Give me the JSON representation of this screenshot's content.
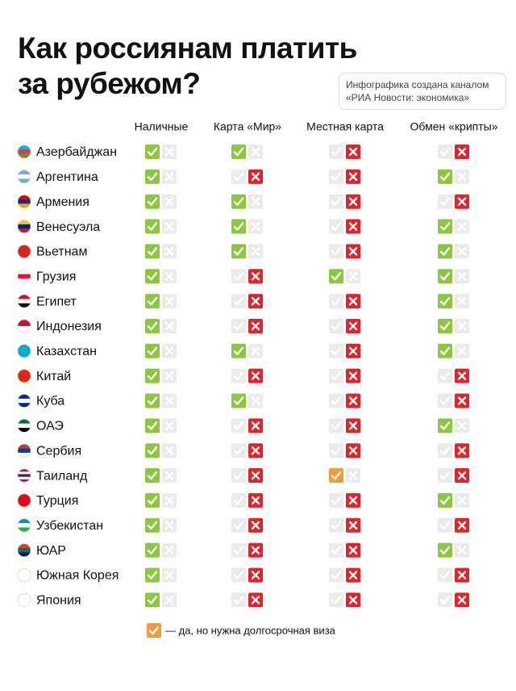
{
  "header": {
    "title_lines": [
      "Как россиянам платить",
      "за рубежом?"
    ],
    "note_lines": [
      "Инфографика создана каналом",
      "«РИА Новости: экономика»"
    ]
  },
  "table": {
    "columns": [
      "Наличные",
      "Карта «Мир»",
      "Местная карта",
      "Обмен «крипты»"
    ],
    "rows": [
      {
        "country": "Азербайджан",
        "flag": [
          "#00b5e2",
          "#ef3340",
          "#509e2f"
        ],
        "status": [
          "yes",
          "yes",
          "no",
          "no"
        ]
      },
      {
        "country": "Аргентина",
        "flag": [
          "#74acdf",
          "#ffffff",
          "#74acdf"
        ],
        "status": [
          "yes",
          "no",
          "no",
          "yes"
        ]
      },
      {
        "country": "Армения",
        "flag": [
          "#d90012",
          "#0033a0",
          "#f2a800"
        ],
        "status": [
          "yes",
          "yes",
          "no",
          "no"
        ]
      },
      {
        "country": "Венесуэла",
        "flag": [
          "#ffcc00",
          "#00247d",
          "#cf142b"
        ],
        "status": [
          "yes",
          "yes",
          "no",
          "yes"
        ]
      },
      {
        "country": "Вьетнам",
        "flag": [
          "#da251d"
        ],
        "status": [
          "yes",
          "yes",
          "no",
          "yes"
        ]
      },
      {
        "country": "Грузия",
        "flag": [
          "#ffffff",
          "#e8112d",
          "#ffffff"
        ],
        "status": [
          "yes",
          "no",
          "yes",
          "yes"
        ]
      },
      {
        "country": "Египет",
        "flag": [
          "#ce1126",
          "#ffffff",
          "#000000"
        ],
        "status": [
          "yes",
          "no",
          "no",
          "yes"
        ]
      },
      {
        "country": "Индонезия",
        "flag": [
          "#ce1126",
          "#ffffff"
        ],
        "status": [
          "yes",
          "no",
          "no",
          "yes"
        ]
      },
      {
        "country": "Казахстан",
        "flag": [
          "#00afca"
        ],
        "status": [
          "yes",
          "yes",
          "no",
          "yes"
        ]
      },
      {
        "country": "Китай",
        "flag": [
          "#de2910"
        ],
        "status": [
          "yes",
          "no",
          "no",
          "no"
        ]
      },
      {
        "country": "Куба",
        "flag": [
          "#002a8f",
          "#ffffff",
          "#002a8f"
        ],
        "status": [
          "yes",
          "yes",
          "no",
          "no"
        ]
      },
      {
        "country": "ОАЭ",
        "flag": [
          "#00732f",
          "#ffffff",
          "#000000"
        ],
        "status": [
          "yes",
          "no",
          "no",
          "yes"
        ]
      },
      {
        "country": "Сербия",
        "flag": [
          "#c6363c",
          "#0c4076",
          "#ffffff"
        ],
        "status": [
          "yes",
          "no",
          "no",
          "no"
        ]
      },
      {
        "country": "Таиланд",
        "flag": [
          "#a51931",
          "#f4f5f8",
          "#2d2a4a",
          "#f4f5f8",
          "#a51931"
        ],
        "status": [
          "yes",
          "no",
          "visa",
          "no"
        ]
      },
      {
        "country": "Турция",
        "flag": [
          "#e30a17"
        ],
        "status": [
          "yes",
          "no",
          "no",
          "yes"
        ]
      },
      {
        "country": "Узбекистан",
        "flag": [
          "#0099b5",
          "#ffffff",
          "#1eb53a"
        ],
        "status": [
          "yes",
          "no",
          "no",
          "no"
        ]
      },
      {
        "country": "ЮАР",
        "flag": [
          "#e03c31",
          "#007749",
          "#001489"
        ],
        "status": [
          "yes",
          "no",
          "no",
          "yes"
        ]
      },
      {
        "country": "Южная Корея",
        "flag": [
          "#ffffff"
        ],
        "status": [
          "yes",
          "no",
          "no",
          "no"
        ]
      },
      {
        "country": "Япония",
        "flag": [
          "#ffffff"
        ],
        "status": [
          "yes",
          "no",
          "no",
          "no"
        ]
      }
    ]
  },
  "legend": {
    "text": "— да, но нужна долгосрочная виза"
  }
}
